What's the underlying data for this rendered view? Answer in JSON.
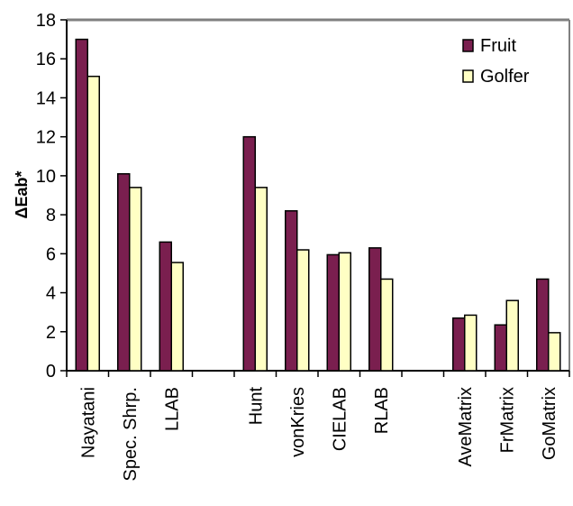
{
  "chart_data": {
    "type": "bar",
    "ylabel": "ΔEab*",
    "ylim": [
      0,
      18
    ],
    "yticks": [
      "0",
      "2",
      "4",
      "6",
      "8",
      "10",
      "12",
      "14",
      "16",
      "18"
    ],
    "grid": false,
    "legend_position": "top-right",
    "categories": [
      "Nayatani",
      "Spec. Shrp.",
      "LLAB",
      "",
      "Hunt",
      "vonKries",
      "CIELAB",
      "RLAB",
      "",
      "AveMatrix",
      "FrMatrix",
      "GoMatrix"
    ],
    "series": [
      {
        "name": "Fruit",
        "color": "#7a1f4f",
        "values": [
          17.0,
          10.1,
          6.6,
          null,
          12.0,
          8.2,
          5.95,
          6.3,
          null,
          2.7,
          2.35,
          4.7
        ]
      },
      {
        "name": "Golfer",
        "color": "#ffffc4",
        "values": [
          15.1,
          9.4,
          5.55,
          null,
          9.4,
          6.2,
          6.05,
          4.7,
          null,
          2.85,
          3.6,
          1.95
        ]
      }
    ]
  }
}
